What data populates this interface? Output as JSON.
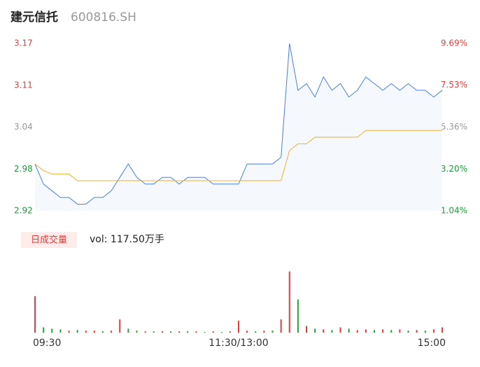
{
  "chart_data": {
    "type": "line",
    "title": "建元信托",
    "subtitle": "600816.SH",
    "categories": [
      "09:30",
      null,
      null,
      null,
      null,
      null,
      null,
      null,
      null,
      null,
      null,
      null,
      null,
      null,
      null,
      null,
      null,
      null,
      null,
      null,
      null,
      null,
      null,
      null,
      "11:30/13:00",
      null,
      null,
      null,
      null,
      null,
      null,
      null,
      null,
      null,
      null,
      null,
      null,
      null,
      null,
      null,
      null,
      null,
      null,
      null,
      null,
      null,
      null,
      null,
      "15:00"
    ],
    "series": [
      {
        "color": "#4a7fe0",
        "values": [
          2.99,
          2.96,
          2.95,
          2.94,
          2.94,
          2.93,
          2.93,
          2.94,
          2.94,
          2.95,
          2.97,
          2.99,
          2.97,
          2.96,
          2.96,
          2.97,
          2.97,
          2.96,
          2.97,
          2.97,
          2.97,
          2.96,
          2.96,
          2.96,
          2.96,
          2.99,
          2.99,
          2.99,
          2.99,
          3.0,
          3.17,
          3.1,
          3.11,
          3.09,
          3.12,
          3.1,
          3.11,
          3.09,
          3.1,
          3.12,
          3.11,
          3.1,
          3.11,
          3.1,
          3.11,
          3.1,
          3.1,
          3.09,
          3.1
        ]
      },
      {
        "color": "#f0b030",
        "values": [
          2.99,
          2.98,
          2.975,
          2.975,
          2.975,
          2.965,
          2.965,
          2.965,
          2.965,
          2.965,
          2.965,
          2.965,
          2.965,
          2.965,
          2.965,
          2.965,
          2.965,
          2.965,
          2.965,
          2.965,
          2.965,
          2.965,
          2.965,
          2.965,
          2.965,
          2.965,
          2.965,
          2.965,
          2.965,
          2.965,
          3.01,
          3.02,
          3.02,
          3.03,
          3.03,
          3.03,
          3.03,
          3.03,
          3.03,
          3.04,
          3.04,
          3.04,
          3.04,
          3.04,
          3.04,
          3.04,
          3.04,
          3.04,
          3.04
        ]
      }
    ],
    "ylim": [
      2.92,
      3.17
    ],
    "yticks": [
      {
        "value": 2.92,
        "label": "2.92"
      },
      {
        "value": 2.9825,
        "label": "2.98"
      },
      {
        "value": 3.045,
        "label": "3.04"
      },
      {
        "value": 3.1075,
        "label": "3.11"
      },
      {
        "value": 3.17,
        "label": "3.17"
      }
    ],
    "y2lim": [
      1.04,
      9.69
    ],
    "y2ticks": [
      {
        "value": 1.04,
        "label": "1.04%"
      },
      {
        "value": 3.2,
        "label": "3.20%"
      },
      {
        "value": 5.36,
        "label": "5.36%"
      },
      {
        "value": 7.53,
        "label": "7.53%"
      },
      {
        "value": 9.69,
        "label": "9.69%"
      }
    ],
    "tick_colors": [
      "#1a9a3a",
      "#1a9a3a",
      "#999999",
      "#e63b3b",
      "#e63b3b"
    ],
    "volume": {
      "title": "日成交量",
      "text": "vol: 117.50万手",
      "ylim": [
        0,
        100
      ],
      "values": [
        55,
        8,
        6,
        5,
        3,
        4,
        3,
        3,
        2,
        3,
        20,
        6,
        3,
        2,
        2,
        2,
        2,
        2,
        2,
        2,
        1,
        2,
        1,
        2,
        18,
        3,
        2,
        3,
        3,
        20,
        92,
        50,
        10,
        6,
        5,
        4,
        8,
        6,
        4,
        5,
        4,
        5,
        4,
        5,
        3,
        4,
        3,
        5,
        8
      ],
      "colors": [
        "#e63b3b",
        "#2aa13a",
        "#2aa13a",
        "#2aa13a",
        "#e63b3b",
        "#2aa13a",
        "#e63b3b",
        "#e63b3b",
        "#2aa13a",
        "#e63b3b",
        "#e63b3b",
        "#2aa13a",
        "#2aa13a",
        "#e63b3b",
        "#2aa13a",
        "#e63b3b",
        "#2aa13a",
        "#e63b3b",
        "#2aa13a",
        "#e63b3b",
        "#2aa13a",
        "#e63b3b",
        "#2aa13a",
        "#e63b3b",
        "#e63b3b",
        "#e63b3b",
        "#2aa13a",
        "#e63b3b",
        "#2aa13a",
        "#e63b3b",
        "#e63b3b",
        "#2aa13a",
        "#e63b3b",
        "#2aa13a",
        "#e63b3b",
        "#2aa13a",
        "#e63b3b",
        "#2aa13a",
        "#e63b3b",
        "#e63b3b",
        "#2aa13a",
        "#e63b3b",
        "#2aa13a",
        "#e63b3b",
        "#2aa13a",
        "#e63b3b",
        "#2aa13a",
        "#e63b3b",
        "#e63b3b"
      ]
    }
  }
}
